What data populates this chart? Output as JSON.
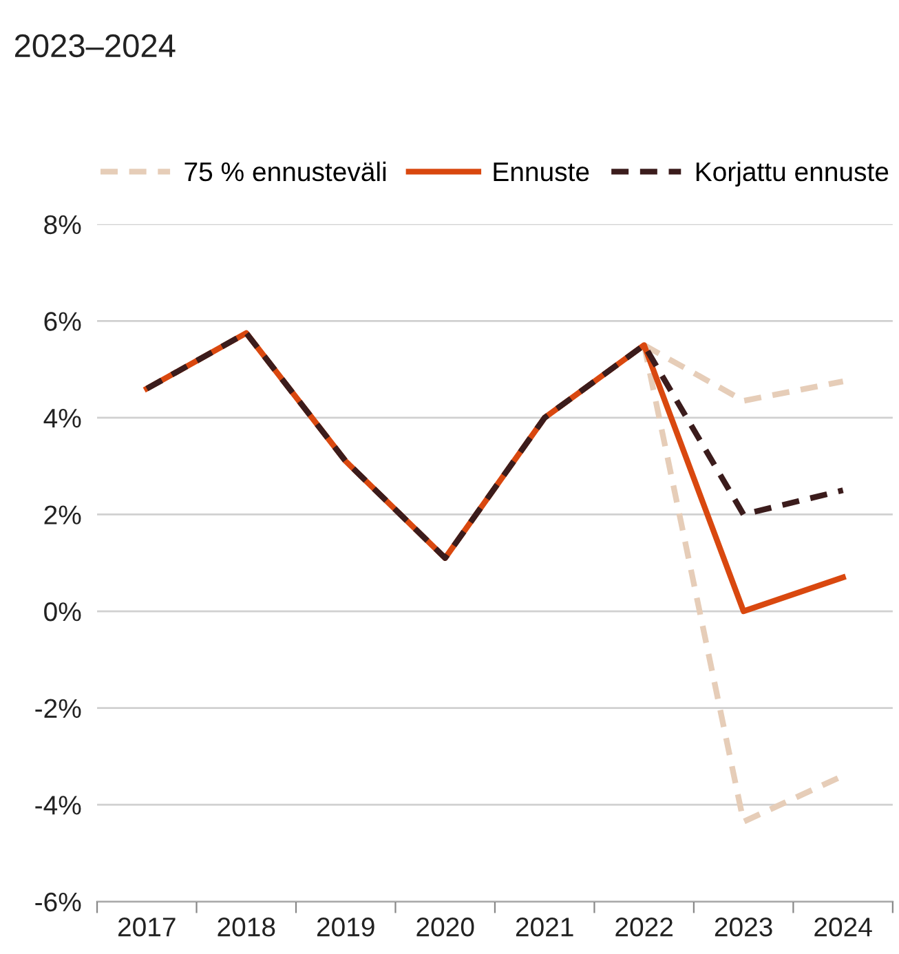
{
  "chart_data": {
    "type": "line",
    "title": "2023–2024",
    "categories": [
      "2017",
      "2018",
      "2019",
      "2020",
      "2021",
      "2022",
      "2023",
      "2024"
    ],
    "series": [
      {
        "name": "75 % ennusteväli",
        "color": "#e6cdb8",
        "line_style": "dashed",
        "values": [
          null,
          null,
          null,
          null,
          null,
          5.5,
          4.35,
          4.75
        ]
      },
      {
        "color": "#e6cdb8",
        "line_style": "dashed",
        "values": [
          null,
          null,
          null,
          null,
          null,
          5.5,
          -4.35,
          -3.4
        ]
      },
      {
        "name": "Ennuste",
        "color": "#d9480f",
        "line_style": "solid",
        "values": [
          4.6,
          5.75,
          3.1,
          1.1,
          4.0,
          5.5,
          0.0,
          0.7
        ]
      },
      {
        "name": "Korjattu ennuste",
        "color": "#3b1c1c",
        "line_style": "dashed",
        "values": [
          4.6,
          5.75,
          3.1,
          1.1,
          4.0,
          5.5,
          2.0,
          2.5
        ]
      }
    ],
    "ylim": [
      -6,
      8
    ],
    "yticks": [
      {
        "value": -6,
        "label": "-6%"
      },
      {
        "value": -4,
        "label": "-4%"
      },
      {
        "value": -2,
        "label": "-2%"
      },
      {
        "value": 0,
        "label": "0%"
      },
      {
        "value": 2,
        "label": "2%"
      },
      {
        "value": 4,
        "label": "4%"
      },
      {
        "value": 6,
        "label": "6%"
      },
      {
        "value": 8,
        "label": "8%"
      }
    ],
    "grid": "y",
    "legend": "top",
    "marker": "none"
  }
}
